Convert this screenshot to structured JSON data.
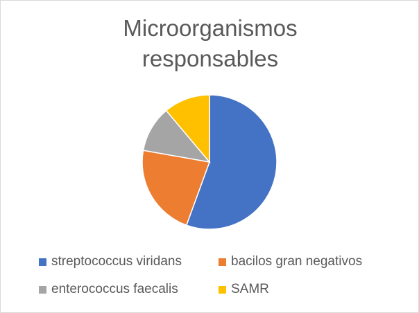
{
  "chart_data": {
    "type": "pie",
    "title": "Microorganismos responsables",
    "categories": [
      "streptococcus viridans",
      "bacilos gran negativos",
      "enterococcus faecalis",
      "SAMR"
    ],
    "values": [
      10,
      4,
      2,
      2
    ],
    "colors": [
      "#4472c4",
      "#ed7d31",
      "#a5a5a5",
      "#ffc000"
    ]
  }
}
